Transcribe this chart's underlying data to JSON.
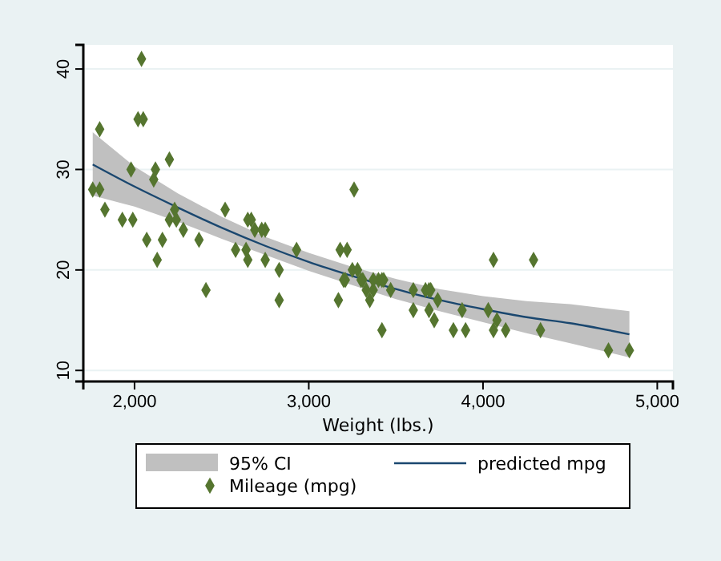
{
  "chart_data": {
    "type": "scatter",
    "xlabel": "Weight (lbs.)",
    "xlim": [
      1706,
      5090
    ],
    "ylim": [
      8.9,
      42.4
    ],
    "xticks": [
      {
        "value": 2000,
        "label": "2,000"
      },
      {
        "value": 3000,
        "label": "3,000"
      },
      {
        "value": 4000,
        "label": "4,000"
      },
      {
        "value": 5000,
        "label": "5,000"
      }
    ],
    "yticks": [
      10,
      20,
      30,
      40
    ],
    "grid": "y",
    "legend": "bottom",
    "annotations": [
      "95% CI"
    ],
    "series": [
      {
        "type": "line",
        "name": "predicted mpg",
        "color": "#1a476f",
        "line_style": "solid",
        "x": [
          1760,
          2000,
          2250,
          2500,
          2750,
          3000,
          3250,
          3500,
          3750,
          4000,
          4250,
          4500,
          4840
        ],
        "values": [
          30.5,
          28.3,
          26.2,
          24.2,
          22.4,
          20.8,
          19.4,
          18.1,
          17.0,
          16.1,
          15.3,
          14.7,
          13.6
        ],
        "lower": [
          27.4,
          26.3,
          24.8,
          23.1,
          21.5,
          19.9,
          18.5,
          17.1,
          15.9,
          14.8,
          13.7,
          12.7,
          11.3
        ],
        "upper": [
          33.7,
          30.3,
          27.6,
          25.3,
          23.3,
          21.7,
          20.3,
          19.1,
          18.1,
          17.4,
          16.9,
          16.6,
          15.9
        ]
      },
      {
        "name": "Mileage (mpg)",
        "color": "#55752f",
        "marker": "diamond",
        "x": [
          2930,
          3350,
          2640,
          3250,
          4080,
          3670,
          2230,
          3280,
          3880,
          3400,
          4330,
          3900,
          4290,
          2110,
          3690,
          3180,
          3220,
          2750,
          3430,
          2120,
          3600,
          3600,
          3740,
          1800,
          2650,
          4840,
          4720,
          3830,
          2580,
          4060,
          3720,
          3370,
          4130,
          2830,
          4060,
          3310,
          3300,
          3690,
          3370,
          2730,
          4030,
          3260,
          1800,
          2200,
          2520,
          3330,
          3700,
          3470,
          3210,
          3200,
          3420,
          2690,
          2830,
          2070,
          2650,
          2370,
          2020,
          2280,
          2750,
          2130,
          2240,
          1760,
          1980,
          3420,
          1830,
          2050,
          2410,
          2200,
          2670,
          2160,
          2040,
          1930,
          1990,
          3170
        ],
        "values": [
          22,
          17,
          22,
          20,
          15,
          18,
          26,
          20,
          16,
          19,
          14,
          14,
          21,
          29,
          16,
          22,
          22,
          24,
          19,
          30,
          18,
          16,
          17,
          28,
          21,
          12,
          12,
          14,
          22,
          14,
          15,
          18,
          14,
          20,
          21,
          19,
          19,
          18,
          19,
          24,
          16,
          28,
          34,
          25,
          26,
          18,
          18,
          18,
          19,
          19,
          19,
          24,
          17,
          23,
          25,
          23,
          35,
          24,
          21,
          21,
          25,
          28,
          30,
          14,
          26,
          35,
          18,
          31,
          25,
          23,
          41,
          25,
          25,
          17
        ]
      }
    ]
  }
}
